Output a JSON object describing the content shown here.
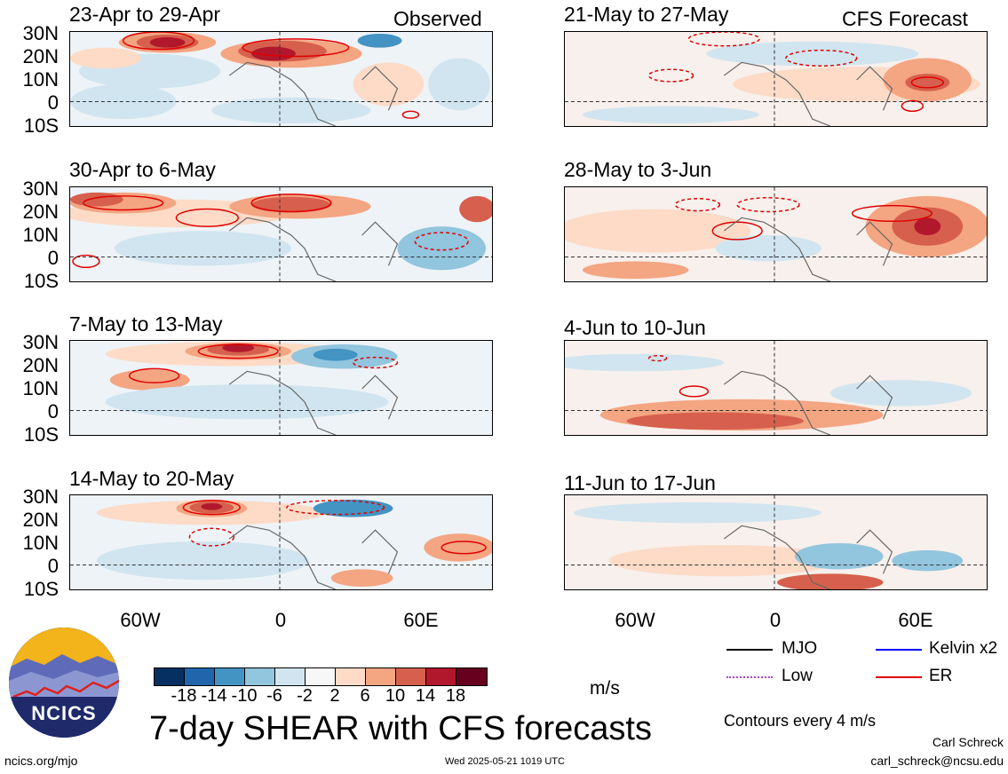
{
  "panels": {
    "left": [
      {
        "title": "23-Apr to 29-Apr",
        "tag": "Observed"
      },
      {
        "title": "30-Apr to 6-May",
        "tag": ""
      },
      {
        "title": "7-May to 13-May",
        "tag": ""
      },
      {
        "title": "14-May to 20-May",
        "tag": ""
      }
    ],
    "right": [
      {
        "title": "21-May to 27-May",
        "tag": "CFS Forecast"
      },
      {
        "title": "28-May to 3-Jun",
        "tag": ""
      },
      {
        "title": "4-Jun to 10-Jun",
        "tag": ""
      },
      {
        "title": "11-Jun to 17-Jun",
        "tag": ""
      }
    ]
  },
  "lat_labels": [
    "30N",
    "20N",
    "10N",
    "0",
    "10S"
  ],
  "lon_labels": [
    "60W",
    "0",
    "60E"
  ],
  "colorbar": {
    "ticks": [
      "-18",
      "-14",
      "-10",
      "-6",
      "-2",
      "2",
      "6",
      "10",
      "14",
      "18"
    ],
    "colors": [
      "#053061",
      "#2166ac",
      "#4393c3",
      "#92c5de",
      "#d1e5f0",
      "#f7f7f7",
      "#fddbc7",
      "#f4a582",
      "#d6604d",
      "#b2182b",
      "#67001f"
    ],
    "unit": "m/s"
  },
  "legend": {
    "items": [
      {
        "label": "MJO",
        "color": "#000000",
        "style": "solid"
      },
      {
        "label": "Kelvin x2",
        "color": "#0000ff",
        "style": "solid"
      },
      {
        "label": "Low",
        "color": "#b040d0",
        "style": "dotted"
      },
      {
        "label": "ER",
        "color": "#e00000",
        "style": "solid"
      }
    ],
    "contour_note": "Contours every 4 m/s"
  },
  "main_title": "7-day SHEAR with CFS forecasts",
  "logo_text": "NCICS",
  "footer": {
    "left": "ncics.org/mjo",
    "center": "Wed 2025-05-21 1019 UTC",
    "author": "Carl Schreck",
    "email": "carl_schreck@ncsu.edu"
  }
}
